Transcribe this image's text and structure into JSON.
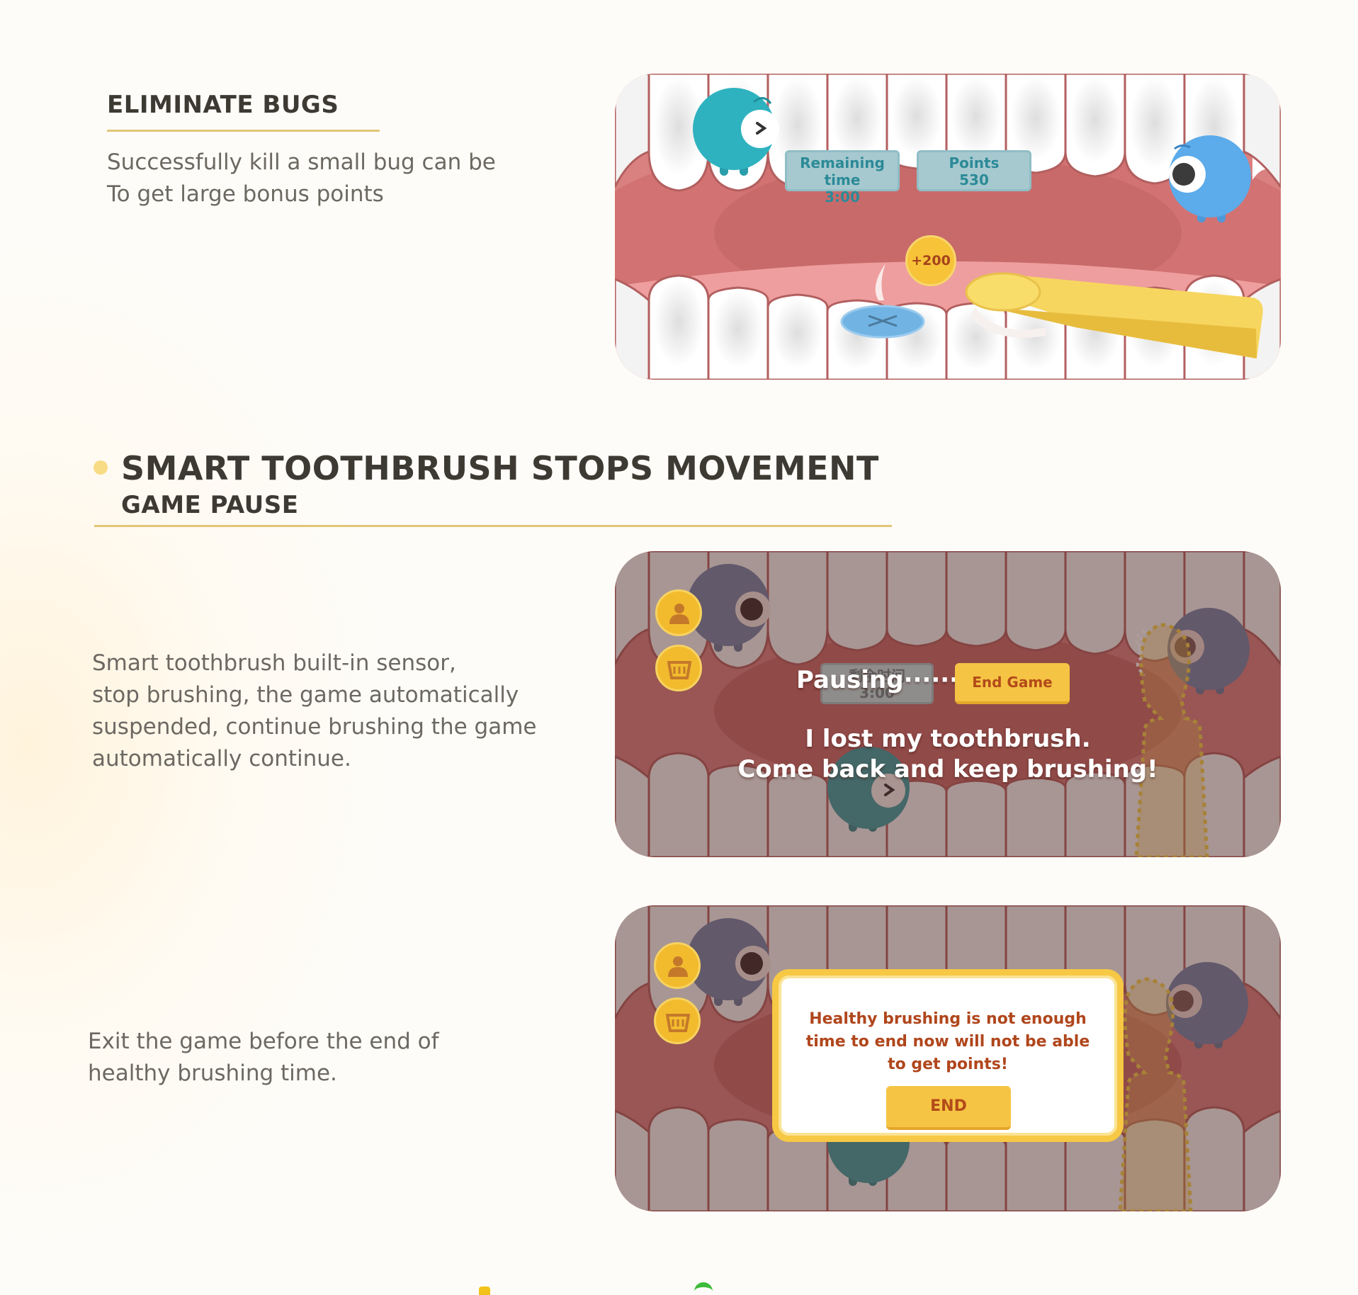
{
  "section1": {
    "title": "ELIMINATE BUGS",
    "desc_lines": [
      "Successfully kill a small bug can be",
      "To get large bonus points"
    ]
  },
  "screen1": {
    "hud_time_label": "Remaining time",
    "hud_time_value": "3:00",
    "hud_points_label": "Points",
    "hud_points_value": "530",
    "bonus": "+200"
  },
  "section2": {
    "title": "SMART TOOTHBRUSH STOPS MOVEMENT",
    "subtitle": "GAME PAUSE",
    "desc_lines": [
      "Smart toothbrush built-in sensor,",
      "stop brushing, the game automatically",
      "suspended, continue brushing the game",
      "automatically continue."
    ]
  },
  "screen2": {
    "hud_time_label": "剩余时间",
    "hud_time_value": "3:00",
    "pausing": "Pausing······",
    "end_game": "End Game",
    "message_line1": "I lost my toothbrush.",
    "message_line2": "Come back and keep brushing!"
  },
  "section3": {
    "desc_lines": [
      "Exit the game before the end of",
      "healthy brushing time."
    ]
  },
  "screen3": {
    "dialog_line1": "Healthy brushing is not enough",
    "dialog_line2": "time to end now will not be able",
    "dialog_line3": "to get points!",
    "end_button": "END"
  },
  "colors": {
    "accent_rule": "#e2c576",
    "bullet": "#f8dc85",
    "button_yellow": "#f6c444",
    "button_text": "#b24a19"
  }
}
